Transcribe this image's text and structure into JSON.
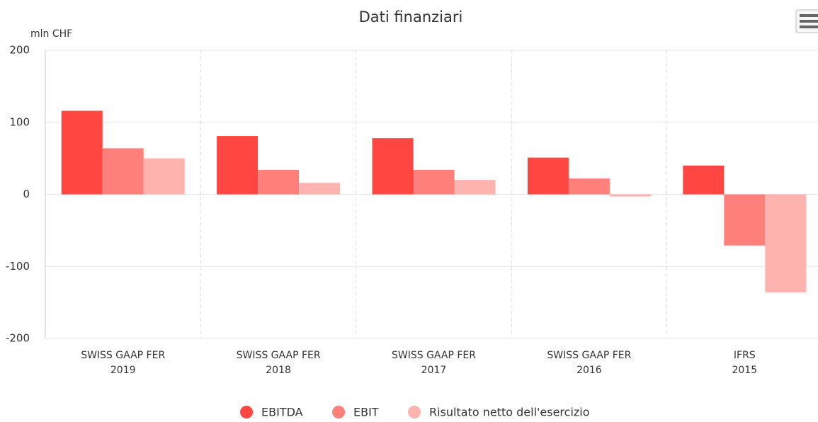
{
  "chart_data": {
    "type": "bar",
    "title": "Dati finanziari",
    "y_label": "mln CHF",
    "categories": [
      [
        "SWISS GAAP FER",
        "2019"
      ],
      [
        "SWISS GAAP FER",
        "2018"
      ],
      [
        "SWISS GAAP FER",
        "2017"
      ],
      [
        "SWISS GAAP FER",
        "2016"
      ],
      [
        "IFRS",
        "2015"
      ]
    ],
    "series": [
      {
        "name": "EBITDA",
        "color": "#ff4641",
        "values": [
          116,
          81,
          78,
          51,
          40
        ]
      },
      {
        "name": "EBIT",
        "color": "#ff7f7a",
        "values": [
          64,
          34,
          34,
          22,
          -71
        ]
      },
      {
        "name": "Risultato netto dell'esercizio",
        "color": "#ffb3ae",
        "values": [
          50,
          16,
          20,
          -3,
          -136
        ]
      }
    ],
    "ylim": [
      -200,
      200
    ],
    "yticks": [
      -200,
      -100,
      0,
      100,
      200
    ],
    "grid": true
  }
}
